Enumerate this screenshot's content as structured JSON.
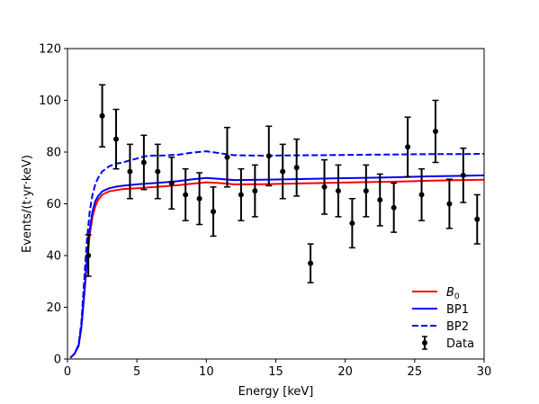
{
  "chart_data": {
    "type": "line",
    "xlabel": "Energy [keV]",
    "ylabel": "Events/(t·yr·keV)",
    "xlim": [
      0,
      30
    ],
    "ylim": [
      0,
      120
    ],
    "xticks": [
      0,
      5,
      10,
      15,
      20,
      25,
      30
    ],
    "yticks": [
      0,
      20,
      40,
      60,
      80,
      100,
      120
    ],
    "grid": false,
    "legend_position": "lower-right",
    "series": [
      {
        "name": "B0",
        "color": "#ff0000",
        "style": "solid",
        "x": [
          0.2,
          0.5,
          0.8,
          1.0,
          1.2,
          1.4,
          1.6,
          1.8,
          2.0,
          2.2,
          2.5,
          3.0,
          3.5,
          4.0,
          5.0,
          6.0,
          7.0,
          8.0,
          9.0,
          10.0,
          11.0,
          12.0,
          14.0,
          16.0,
          18.0,
          20.0,
          22.0,
          24.0,
          26.0,
          28.0,
          30.0
        ],
        "values": [
          0.5,
          2.0,
          5.0,
          12.0,
          24.0,
          37.0,
          48.0,
          55.0,
          59.0,
          61.5,
          63.5,
          64.8,
          65.3,
          65.7,
          66.0,
          66.4,
          66.8,
          67.2,
          67.8,
          68.3,
          68.0,
          67.5,
          67.6,
          67.8,
          68.0,
          68.2,
          68.4,
          68.6,
          68.9,
          69.1,
          69.3
        ]
      },
      {
        "name": "BP1",
        "color": "#0000ff",
        "style": "solid",
        "x": [
          0.2,
          0.5,
          0.8,
          1.0,
          1.2,
          1.4,
          1.6,
          1.8,
          2.0,
          2.2,
          2.5,
          3.0,
          3.5,
          4.0,
          5.0,
          6.0,
          7.0,
          8.0,
          9.0,
          10.0,
          11.0,
          12.0,
          14.0,
          16.0,
          18.0,
          20.0,
          22.0,
          24.0,
          26.0,
          28.0,
          30.0
        ],
        "values": [
          0.5,
          2.0,
          5.0,
          12.5,
          25.0,
          38.5,
          50.0,
          57.0,
          61.0,
          63.0,
          64.8,
          66.0,
          66.6,
          67.0,
          67.5,
          67.9,
          68.3,
          68.8,
          69.5,
          70.0,
          69.6,
          69.2,
          69.3,
          69.5,
          69.7,
          69.9,
          70.1,
          70.3,
          70.6,
          70.8,
          71.0
        ]
      },
      {
        "name": "BP2",
        "color": "#0000ff",
        "style": "dashed",
        "x": [
          0.2,
          0.5,
          0.8,
          1.0,
          1.2,
          1.4,
          1.6,
          1.8,
          2.0,
          2.2,
          2.5,
          3.0,
          3.5,
          4.0,
          4.5,
          5.0,
          5.5,
          6.0,
          7.0,
          8.0,
          9.0,
          10.0,
          11.0,
          12.0,
          14.0,
          16.0,
          18.0,
          20.0,
          22.0,
          24.0,
          26.0,
          28.0,
          30.0
        ],
        "values": [
          0.5,
          2.0,
          5.5,
          14.0,
          30.0,
          46.0,
          57.0,
          63.5,
          67.5,
          70.0,
          72.5,
          74.5,
          75.5,
          76.0,
          76.8,
          77.5,
          78.3,
          78.6,
          78.7,
          79.0,
          79.8,
          80.3,
          79.5,
          78.8,
          78.6,
          78.7,
          78.8,
          78.9,
          79.0,
          79.1,
          79.2,
          79.2,
          79.3
        ]
      }
    ],
    "data_points": {
      "name": "Data",
      "x": [
        1.5,
        2.5,
        3.5,
        4.5,
        5.5,
        6.5,
        7.5,
        8.5,
        9.5,
        10.5,
        11.5,
        12.5,
        13.5,
        14.5,
        15.5,
        16.5,
        17.5,
        18.5,
        19.5,
        20.5,
        21.5,
        22.5,
        23.5,
        24.5,
        25.5,
        26.5,
        27.5,
        28.5,
        29.5
      ],
      "y": [
        40.0,
        94.0,
        85.0,
        72.5,
        76.0,
        72.5,
        68.0,
        63.5,
        62.0,
        57.0,
        78.0,
        63.5,
        65.0,
        78.5,
        72.5,
        74.0,
        37.0,
        66.5,
        65.0,
        52.5,
        65.0,
        61.5,
        58.5,
        82.0,
        63.5,
        88.0,
        60.0,
        71.0,
        54.0
      ],
      "yerr": [
        8.0,
        12.0,
        11.5,
        10.5,
        10.5,
        10.5,
        10.0,
        10.0,
        10.0,
        9.5,
        11.5,
        10.0,
        10.0,
        11.5,
        10.5,
        11.0,
        7.5,
        10.5,
        10.0,
        9.5,
        10.0,
        10.0,
        9.5,
        11.5,
        10.0,
        12.0,
        9.5,
        10.5,
        9.5
      ]
    },
    "legend": {
      "entries": [
        {
          "label_main": "B",
          "label_sub": "0",
          "style": "solid",
          "color": "#ff0000"
        },
        {
          "label_main": "BP1",
          "label_sub": "",
          "style": "solid",
          "color": "#0000ff"
        },
        {
          "label_main": "BP2",
          "label_sub": "",
          "style": "dashed",
          "color": "#0000ff"
        },
        {
          "label_main": "Data",
          "label_sub": "",
          "style": "errorbar",
          "color": "#000000"
        }
      ]
    }
  }
}
